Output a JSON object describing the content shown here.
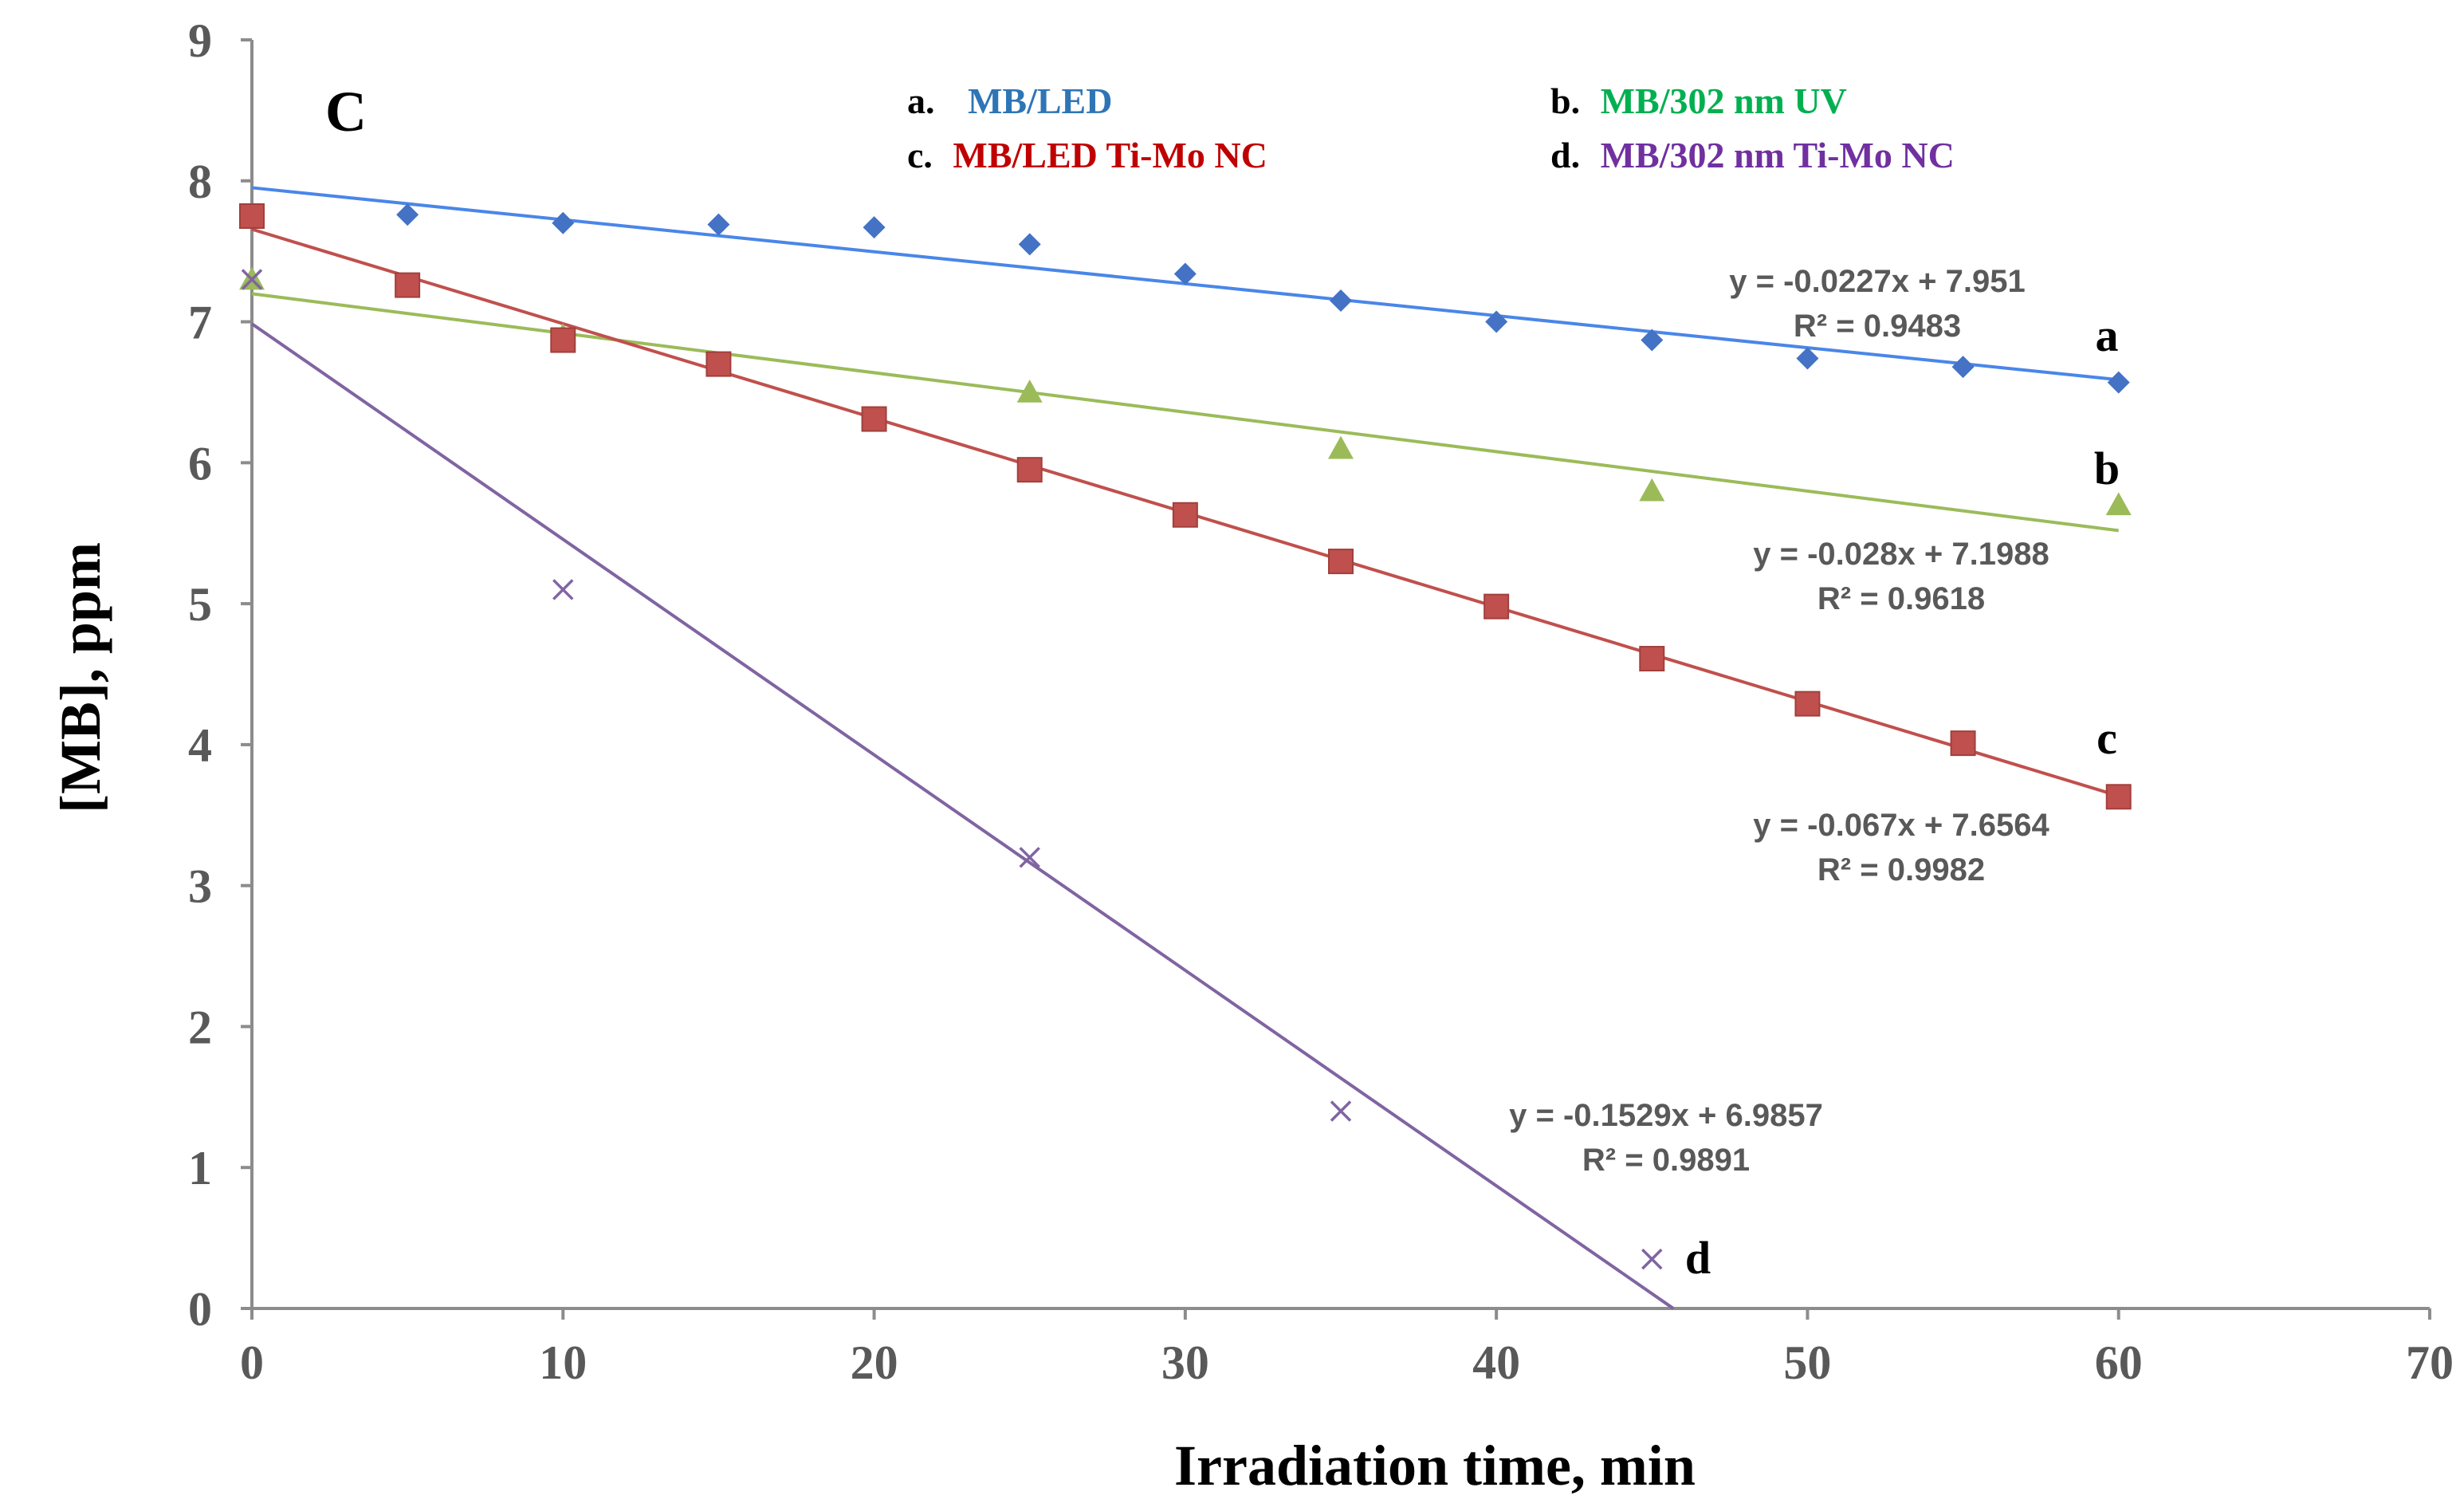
{
  "chart_data": {
    "type": "scatter",
    "panel_label": "C",
    "xlabel": "Irradiation time, min",
    "ylabel": "[MB], ppm",
    "xlim": [
      0,
      70
    ],
    "ylim": [
      0,
      9
    ],
    "x_ticks": [
      0,
      10,
      20,
      30,
      40,
      50,
      60,
      70
    ],
    "y_ticks": [
      0,
      1,
      2,
      3,
      4,
      5,
      6,
      7,
      8,
      9
    ],
    "grid": false,
    "series": [
      {
        "id": "a",
        "letter": "a",
        "legend_prefix": "a.",
        "name": "MB/LED",
        "marker": "diamond",
        "marker_color": "#4472C4",
        "line_color": "#4A86E8",
        "legend_color": "#2E75B6",
        "x": [
          0,
          5,
          10,
          15,
          20,
          25,
          30,
          35,
          40,
          45,
          50,
          55,
          60
        ],
        "y": [
          7.75,
          7.76,
          7.7,
          7.69,
          7.67,
          7.55,
          7.34,
          7.15,
          7.0,
          6.87,
          6.74,
          6.68,
          6.57
        ],
        "fit": {
          "slope": -0.0227,
          "intercept": 7.951,
          "x_range": [
            0,
            60
          ]
        },
        "equation": "y = -0.0227x + 7.951",
        "r2": "R² = 0.9483"
      },
      {
        "id": "b",
        "letter": "b",
        "legend_prefix": "b.",
        "name": "MB/302 nm UV",
        "marker": "triangle",
        "marker_color": "#9BBB59",
        "line_color": "#9BBB59",
        "legend_color": "#00B050",
        "x": [
          0,
          10,
          25,
          35,
          45,
          60
        ],
        "y": [
          7.3,
          6.9,
          6.5,
          6.1,
          5.8,
          5.7
        ],
        "fit": {
          "slope": -0.028,
          "intercept": 7.1988,
          "x_range": [
            0,
            60
          ]
        },
        "equation": "y = -0.028x + 7.1988",
        "r2": "R² = 0.9618"
      },
      {
        "id": "c",
        "letter": "c",
        "legend_prefix": "c.",
        "name": "MB/LED Ti-Mo NC",
        "marker": "square",
        "marker_color": "#C0504D",
        "line_color": "#C0504D",
        "legend_color": "#C00000",
        "x": [
          0,
          5,
          10,
          15,
          20,
          25,
          30,
          35,
          40,
          45,
          50,
          55,
          60
        ],
        "y": [
          7.75,
          7.26,
          6.87,
          6.7,
          6.31,
          5.95,
          5.63,
          5.3,
          4.98,
          4.61,
          4.29,
          4.01,
          3.63
        ],
        "fit": {
          "slope": -0.067,
          "intercept": 7.6564,
          "x_range": [
            0,
            60
          ]
        },
        "equation": "y = -0.067x + 7.6564",
        "r2": "R² = 0.9982"
      },
      {
        "id": "d",
        "letter": "d",
        "legend_prefix": "d.",
        "name": "MB/302 nm Ti-Mo NC",
        "marker": "cross",
        "marker_color": "#8064A2",
        "line_color": "#8064A2",
        "legend_color": "#7030A0",
        "x": [
          0,
          10,
          25,
          35,
          45
        ],
        "y": [
          7.3,
          5.1,
          3.2,
          1.4,
          0.35
        ],
        "fit": {
          "slope": -0.1529,
          "intercept": 6.9857,
          "x_range": [
            0,
            45.69
          ]
        },
        "equation": "y = -0.1529x + 6.9857",
        "r2": "R² = 0.9891"
      }
    ]
  }
}
